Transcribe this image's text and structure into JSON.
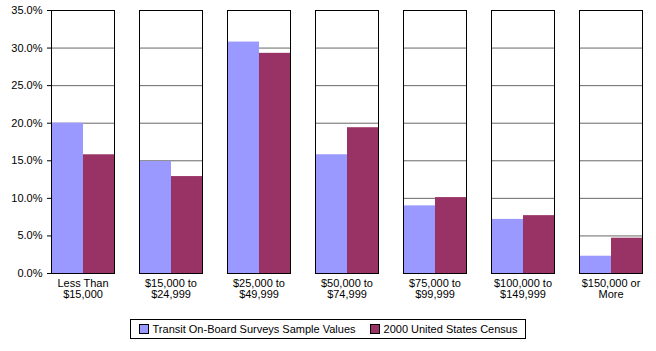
{
  "chart_data": {
    "type": "bar",
    "categories": [
      "Less Than\n$15,000",
      "$15,000 to\n$24,999",
      "$25,000 to\n$49,999",
      "$50,000 to\n$74,999",
      "$75,000 to\n$99,999",
      "$100,000 to\n$149,999",
      "$150,000 or\nMore"
    ],
    "series": [
      {
        "name": "Transit On-Board Surveys Sample Values",
        "color": "#9999ff",
        "values": [
          20.0,
          14.9,
          30.8,
          15.8,
          9.0,
          7.2,
          2.3
        ]
      },
      {
        "name": "2000 United States Census",
        "color": "#993366",
        "values": [
          15.8,
          12.9,
          29.3,
          19.4,
          10.1,
          7.7,
          4.7
        ]
      }
    ],
    "ylim": [
      0,
      35
    ],
    "yticks": [
      {
        "value": 0,
        "label": "0.0%"
      },
      {
        "value": 5,
        "label": "5.0%"
      },
      {
        "value": 10,
        "label": "10.0%"
      },
      {
        "value": 15,
        "label": "15.0%"
      },
      {
        "value": 20,
        "label": "20.0%"
      },
      {
        "value": 25,
        "label": "25.0%"
      },
      {
        "value": 30,
        "label": "30.0%"
      },
      {
        "value": 35,
        "label": "35.0%"
      }
    ],
    "grid": true,
    "legend": "bottom"
  }
}
